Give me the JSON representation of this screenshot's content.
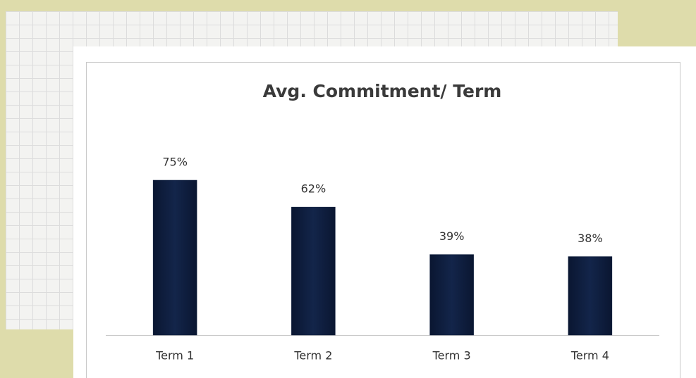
{
  "chart_data": {
    "type": "bar",
    "title": "Avg. Commitment/ Term",
    "categories": [
      "Term 1",
      "Term 2",
      "Term 3",
      "Term 4"
    ],
    "values": [
      75,
      62,
      39,
      38
    ],
    "value_labels": [
      "75%",
      "62%",
      "39%",
      "38%"
    ],
    "color": "#0f1e3d"
  }
}
